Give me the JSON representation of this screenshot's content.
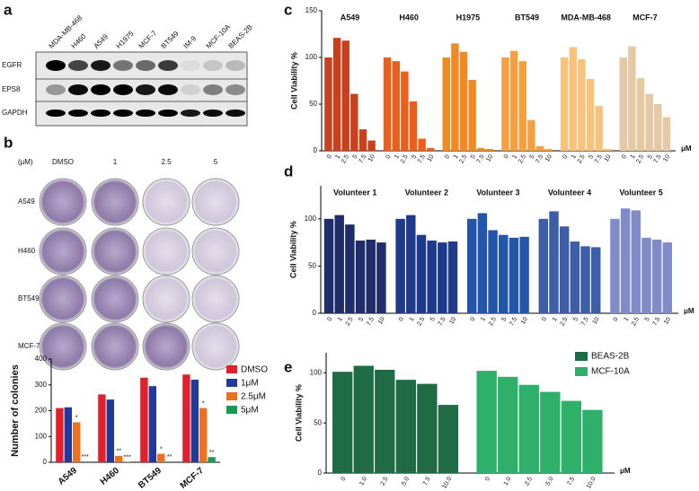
{
  "panels": [
    "a",
    "b",
    "c",
    "d",
    "e"
  ],
  "blot": {
    "cell_lines": [
      "MDA-MB-468",
      "H460",
      "A549",
      "H1975",
      "MCF-7",
      "BT549",
      "IM-9",
      "MCF-10A",
      "BEAS-2B"
    ],
    "bands": [
      "EGFR",
      "EPS8",
      "GAPDH"
    ]
  },
  "colony": {
    "unit": "(μM)",
    "doses": [
      "DMSO",
      "1",
      "2.5",
      "5"
    ],
    "cell_lines": [
      "A549",
      "H460",
      "BT549",
      "MCF-7"
    ]
  },
  "chart_data": [
    {
      "type": "bar",
      "ylabel": "Number of colonies",
      "categories": [
        "A549",
        "H460",
        "BT549",
        "MCF-7"
      ],
      "series": [
        {
          "name": "DMSO",
          "color": "#e0202a",
          "values": [
            210,
            263,
            328,
            340
          ]
        },
        {
          "name": "1μM",
          "color": "#1f3a9a",
          "values": [
            213,
            243,
            295,
            320
          ]
        },
        {
          "name": "2.5μM",
          "color": "#f07020",
          "values": [
            155,
            25,
            33,
            210
          ],
          "significance": [
            "*",
            "**",
            "*",
            "*"
          ]
        },
        {
          "name": "5μM",
          "color": "#1a9a50",
          "values": [
            3,
            2,
            3,
            20
          ],
          "significance": [
            "***",
            "***",
            "**",
            "**"
          ]
        }
      ],
      "ylim": [
        0,
        400
      ],
      "yticks": [
        0,
        100,
        200,
        300,
        400
      ],
      "legend": "right"
    },
    {
      "type": "bar",
      "ylabel": "Cell Viability %",
      "unit": "μM",
      "categories": [
        "0",
        "1",
        "2.5",
        "5",
        "7.5",
        "10"
      ],
      "series": [
        {
          "name": "A549",
          "color": "#c8401c",
          "values": [
            100,
            121,
            118,
            61,
            23,
            11
          ]
        },
        {
          "name": "H460",
          "color": "#e8601c",
          "values": [
            100,
            96,
            85,
            53,
            13,
            3
          ]
        },
        {
          "name": "H1975",
          "color": "#f08a24",
          "values": [
            100,
            115,
            106,
            76,
            3,
            2
          ]
        },
        {
          "name": "BT549",
          "color": "#f5a040",
          "values": [
            100,
            107,
            96,
            33,
            5,
            2
          ]
        },
        {
          "name": "MDA-MB-468",
          "color": "#f8c27a",
          "values": [
            100,
            111,
            98,
            77,
            48,
            2
          ]
        },
        {
          "name": "MCF-7",
          "color": "#e6c8a4",
          "values": [
            100,
            112,
            78,
            61,
            50,
            36
          ]
        }
      ],
      "ylim": [
        0,
        150
      ],
      "yticks": [
        0,
        50,
        100,
        150
      ]
    },
    {
      "type": "bar",
      "ylabel": "Cell Viability %",
      "unit": "μM",
      "categories": [
        "0",
        "1",
        "2.5",
        "5",
        "7.5",
        "10"
      ],
      "series": [
        {
          "name": "Volunteer 1",
          "color": "#1f2d6b",
          "values": [
            100,
            104,
            94,
            77,
            78,
            75
          ]
        },
        {
          "name": "Volunteer 2",
          "color": "#1f3a8a",
          "values": [
            100,
            104,
            83,
            77,
            75,
            76
          ]
        },
        {
          "name": "Volunteer 3",
          "color": "#2356a8",
          "values": [
            100,
            106,
            88,
            83,
            80,
            81
          ]
        },
        {
          "name": "Volunteer 4",
          "color": "#3e5ea8",
          "values": [
            100,
            108,
            92,
            76,
            71,
            70
          ]
        },
        {
          "name": "Volunteer 5",
          "color": "#7f8cc8",
          "values": [
            100,
            111,
            109,
            80,
            78,
            75
          ]
        }
      ],
      "ylim": [
        0,
        135
      ],
      "yticks": [
        0,
        50,
        100
      ]
    },
    {
      "type": "bar",
      "ylabel": "Cell Viability %",
      "unit": "μM",
      "categories": [
        "0",
        "1.0",
        "2.5",
        "5.0",
        "7.5",
        "10.0"
      ],
      "series": [
        {
          "name": "BEAS-2B",
          "color": "#1e6b45",
          "values": [
            101,
            107,
            103,
            93,
            89,
            68
          ]
        },
        {
          "name": "MCF-10A",
          "color": "#2fb06a",
          "values": [
            102,
            96,
            88,
            81,
            72,
            63
          ]
        }
      ],
      "ylim": [
        0,
        120
      ],
      "yticks": [
        0,
        50,
        100
      ],
      "legend": "top-right"
    }
  ]
}
